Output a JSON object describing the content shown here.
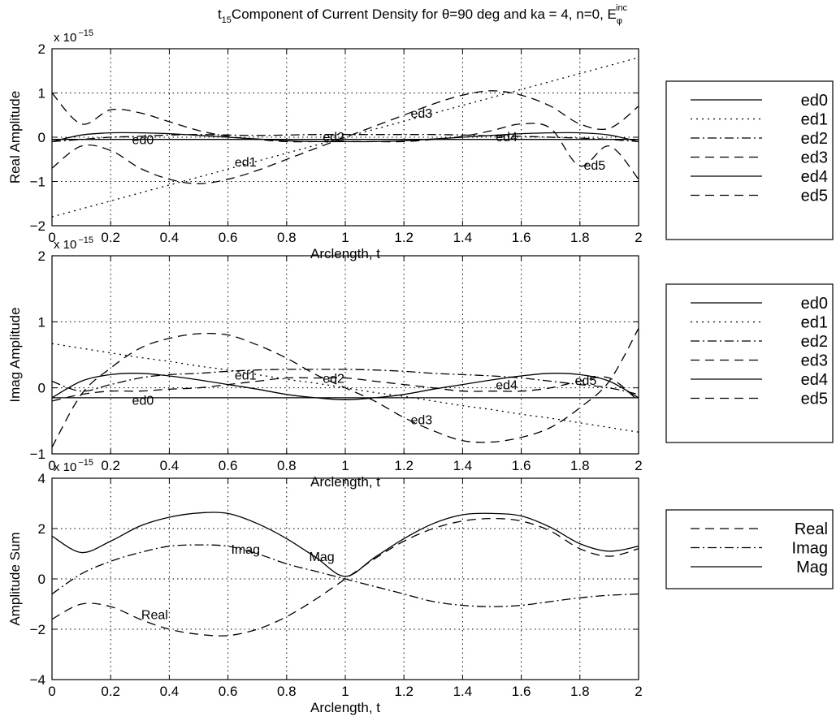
{
  "figure": {
    "title_prefix": "t",
    "title_prefix_sub": "15",
    "title_main": "Component of Current Density for θ=90 deg and ka = 4, n=0, E",
    "title_sub": "φ",
    "title_sup": "inc"
  },
  "chart_data": [
    {
      "type": "line",
      "title": "",
      "xlabel": "Arclength, t",
      "ylabel": "Real Amplitude",
      "exponent_base": "x 10",
      "exponent_power": "−15",
      "xlim": [
        0,
        2
      ],
      "ylim": [
        -2,
        2
      ],
      "xticks": [
        "0",
        "0.2",
        "0.4",
        "0.6",
        "0.8",
        "1",
        "1.2",
        "1.4",
        "1.6",
        "1.8",
        "2"
      ],
      "yticks": [
        "−2",
        "−1",
        "0",
        "1",
        "2"
      ],
      "grid": true,
      "legend_position": "right",
      "x": [
        0,
        0.1,
        0.2,
        0.3,
        0.4,
        0.5,
        0.6,
        0.7,
        0.8,
        0.9,
        1.0,
        1.1,
        1.2,
        1.3,
        1.4,
        1.5,
        1.6,
        1.7,
        1.8,
        1.9,
        2.0
      ],
      "series": [
        {
          "name": "ed0",
          "dash": "solid",
          "values": [
            -0.05,
            -0.05,
            -0.05,
            -0.05,
            -0.05,
            -0.05,
            -0.05,
            -0.05,
            -0.05,
            -0.05,
            -0.05,
            -0.05,
            -0.05,
            -0.05,
            -0.05,
            -0.05,
            -0.05,
            -0.05,
            -0.05,
            -0.05,
            -0.05
          ]
        },
        {
          "name": "ed1",
          "dash": "dotted",
          "values": [
            -1.8,
            -1.62,
            -1.44,
            -1.26,
            -1.08,
            -0.9,
            -0.72,
            -0.54,
            -0.36,
            -0.18,
            0.0,
            0.18,
            0.36,
            0.54,
            0.72,
            0.9,
            1.08,
            1.26,
            1.44,
            1.62,
            1.8
          ]
        },
        {
          "name": "ed2",
          "dash": "dashdot",
          "values": [
            -0.1,
            -0.05,
            0.0,
            0.02,
            0.05,
            0.06,
            0.05,
            0.04,
            0.05,
            0.06,
            0.06,
            0.06,
            0.06,
            0.06,
            0.05,
            0.03,
            0.02,
            0.0,
            -0.02,
            -0.05,
            -0.1
          ]
        },
        {
          "name": "ed3",
          "dash": "dashed",
          "values": [
            -0.7,
            -0.2,
            -0.3,
            -0.7,
            -0.95,
            -1.05,
            -0.95,
            -0.75,
            -0.5,
            -0.25,
            0.0,
            0.25,
            0.5,
            0.75,
            0.95,
            1.05,
            0.95,
            0.7,
            0.3,
            0.2,
            0.7
          ]
        },
        {
          "name": "ed4",
          "dash": "solid",
          "values": [
            -0.1,
            0.05,
            0.1,
            0.1,
            0.08,
            0.04,
            0.0,
            -0.04,
            -0.08,
            -0.1,
            -0.1,
            -0.1,
            -0.08,
            -0.04,
            0.0,
            0.04,
            0.08,
            0.1,
            0.1,
            0.05,
            -0.1
          ]
        },
        {
          "name": "ed5",
          "dash": "dashed",
          "values": [
            1.0,
            0.3,
            0.62,
            0.55,
            0.35,
            0.15,
            0.02,
            -0.05,
            -0.1,
            -0.1,
            -0.1,
            -0.1,
            -0.1,
            -0.05,
            0.02,
            0.15,
            0.3,
            0.2,
            -0.65,
            -0.2,
            -0.95
          ]
        }
      ],
      "annotations": [
        {
          "text": "ed0",
          "x": 0.31,
          "y": -0.05
        },
        {
          "text": "ed1",
          "x": 0.66,
          "y": -0.55
        },
        {
          "text": "ed2",
          "x": 0.96,
          "y": 0.02
        },
        {
          "text": "ed3",
          "x": 1.26,
          "y": 0.55
        },
        {
          "text": "ed4",
          "x": 1.55,
          "y": 0.02
        },
        {
          "text": "ed5",
          "x": 1.85,
          "y": -0.62
        }
      ]
    },
    {
      "type": "line",
      "title": "",
      "xlabel": "Arclength, t",
      "ylabel": "Imag Amplitude",
      "exponent_base": "x 10",
      "exponent_power": "−15",
      "xlim": [
        0,
        2
      ],
      "ylim": [
        -1,
        2
      ],
      "xticks": [
        "0",
        "0.2",
        "0.4",
        "0.6",
        "0.8",
        "1",
        "1.2",
        "1.4",
        "1.6",
        "1.8",
        "2"
      ],
      "yticks": [
        "−1",
        "0",
        "1",
        "2"
      ],
      "grid": true,
      "legend_position": "right",
      "x": [
        0,
        0.1,
        0.2,
        0.3,
        0.4,
        0.5,
        0.6,
        0.7,
        0.8,
        0.9,
        1.0,
        1.1,
        1.2,
        1.3,
        1.4,
        1.5,
        1.6,
        1.7,
        1.8,
        1.9,
        2.0
      ],
      "series": [
        {
          "name": "ed0",
          "dash": "solid",
          "values": [
            -0.15,
            -0.15,
            -0.15,
            -0.15,
            -0.15,
            -0.15,
            -0.15,
            -0.15,
            -0.15,
            -0.15,
            -0.15,
            -0.15,
            -0.15,
            -0.15,
            -0.15,
            -0.15,
            -0.15,
            -0.15,
            -0.15,
            -0.15,
            -0.15
          ]
        },
        {
          "name": "ed1",
          "dash": "dotted",
          "values": [
            0.67,
            0.6,
            0.53,
            0.46,
            0.4,
            0.33,
            0.27,
            0.2,
            0.13,
            0.07,
            0.0,
            -0.07,
            -0.13,
            -0.2,
            -0.27,
            -0.33,
            -0.4,
            -0.46,
            -0.53,
            -0.6,
            -0.67
          ]
        },
        {
          "name": "ed2",
          "dash": "dashdot",
          "values": [
            0.1,
            -0.05,
            0.05,
            0.15,
            0.2,
            0.22,
            0.25,
            0.27,
            0.28,
            0.28,
            0.28,
            0.27,
            0.25,
            0.22,
            0.2,
            0.18,
            0.15,
            0.1,
            0.05,
            0.0,
            -0.1
          ]
        },
        {
          "name": "ed3",
          "dash": "dashed",
          "values": [
            -0.9,
            -0.1,
            0.3,
            0.6,
            0.75,
            0.82,
            0.8,
            0.65,
            0.45,
            0.2,
            0.0,
            -0.2,
            -0.45,
            -0.65,
            -0.8,
            -0.82,
            -0.75,
            -0.6,
            -0.3,
            0.1,
            0.9
          ]
        },
        {
          "name": "ed4",
          "dash": "solid",
          "values": [
            -0.15,
            0.1,
            0.2,
            0.22,
            0.18,
            0.12,
            0.05,
            -0.02,
            -0.1,
            -0.15,
            -0.18,
            -0.15,
            -0.1,
            -0.02,
            0.05,
            0.12,
            0.18,
            0.22,
            0.2,
            0.1,
            -0.15
          ]
        },
        {
          "name": "ed5",
          "dash": "dashed",
          "values": [
            -0.2,
            -0.1,
            -0.05,
            -0.05,
            -0.02,
            0.0,
            0.05,
            0.1,
            0.15,
            0.15,
            0.15,
            0.1,
            0.05,
            0.0,
            -0.05,
            -0.05,
            -0.05,
            0.0,
            0.1,
            0.15,
            -0.2
          ]
        }
      ],
      "annotations": [
        {
          "text": "ed0",
          "x": 0.31,
          "y": -0.18
        },
        {
          "text": "ed1",
          "x": 0.66,
          "y": 0.2
        },
        {
          "text": "ed2",
          "x": 0.96,
          "y": 0.15
        },
        {
          "text": "ed3",
          "x": 1.26,
          "y": -0.48
        },
        {
          "text": "ed4",
          "x": 1.55,
          "y": 0.05
        },
        {
          "text": "ed5",
          "x": 1.82,
          "y": 0.12
        }
      ]
    },
    {
      "type": "line",
      "title": "",
      "xlabel": "Arclength, t",
      "ylabel": "Amplitude Sum",
      "exponent_base": "x 10",
      "exponent_power": "−15",
      "xlim": [
        0,
        2
      ],
      "ylim": [
        -4,
        4
      ],
      "xticks": [
        "0",
        "0.2",
        "0.4",
        "0.6",
        "0.8",
        "1",
        "1.2",
        "1.4",
        "1.6",
        "1.8",
        "2"
      ],
      "yticks": [
        "−4",
        "−2",
        "0",
        "2",
        "4"
      ],
      "grid": true,
      "legend_position": "right",
      "x": [
        0,
        0.1,
        0.2,
        0.3,
        0.4,
        0.5,
        0.6,
        0.7,
        0.8,
        0.9,
        1.0,
        1.1,
        1.2,
        1.3,
        1.4,
        1.5,
        1.6,
        1.7,
        1.8,
        1.9,
        2.0
      ],
      "series": [
        {
          "name": "Real",
          "dash": "dashed",
          "values": [
            -1.6,
            -1.0,
            -1.1,
            -1.6,
            -2.0,
            -2.2,
            -2.25,
            -2.0,
            -1.5,
            -0.8,
            0.0,
            0.8,
            1.5,
            2.0,
            2.3,
            2.4,
            2.3,
            1.9,
            1.2,
            0.9,
            1.2
          ]
        },
        {
          "name": "Imag",
          "dash": "dashdot",
          "values": [
            -0.6,
            0.2,
            0.7,
            1.05,
            1.3,
            1.35,
            1.3,
            1.0,
            0.6,
            0.3,
            0.0,
            -0.3,
            -0.6,
            -0.9,
            -1.05,
            -1.1,
            -1.05,
            -0.9,
            -0.75,
            -0.65,
            -0.6
          ]
        },
        {
          "name": "Mag",
          "dash": "solid",
          "values": [
            1.7,
            1.05,
            1.5,
            2.1,
            2.45,
            2.62,
            2.6,
            2.2,
            1.6,
            0.85,
            0.1,
            0.85,
            1.6,
            2.2,
            2.55,
            2.6,
            2.5,
            2.05,
            1.4,
            1.1,
            1.3
          ]
        }
      ],
      "annotations": [
        {
          "text": "Real",
          "x": 0.35,
          "y": -1.4
        },
        {
          "text": "Imag",
          "x": 0.66,
          "y": 1.2
        },
        {
          "text": "Mag",
          "x": 0.92,
          "y": 0.9
        }
      ]
    }
  ]
}
